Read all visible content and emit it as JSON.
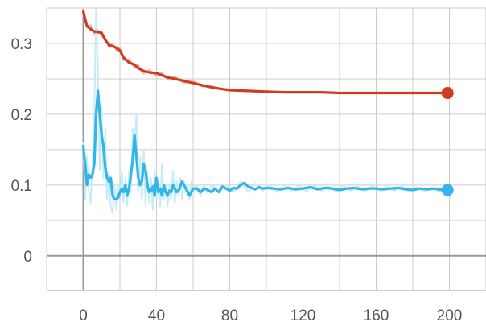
{
  "chart_data": {
    "type": "line",
    "x_ticks": [
      0,
      40,
      80,
      120,
      160,
      200
    ],
    "x_tick_labels": [
      "0",
      "40",
      "80",
      "120",
      "160",
      "200"
    ],
    "y_ticks": [
      0,
      0.1,
      0.2,
      0.3
    ],
    "y_tick_labels": [
      "0",
      "0.1",
      "0.2",
      "0.3"
    ],
    "xlim": [
      -20,
      220
    ],
    "ylim": [
      -0.048,
      0.35
    ],
    "x_grid_step": 20,
    "y_grid_step": 0.05,
    "grid": true,
    "colors": {
      "axis_zero": "#999999",
      "grid": "#cccccc",
      "series_1": "#cc3e1f",
      "series_1_raw": "#f0b8a8",
      "series_2": "#33b5e5",
      "series_2_raw": "#c5ebf8"
    },
    "series": [
      {
        "key": "series_1",
        "x": [
          0,
          2,
          4,
          6,
          8,
          10,
          12,
          14,
          16,
          18,
          20,
          22,
          25,
          28,
          30,
          33,
          36,
          40,
          43,
          46,
          50,
          55,
          60,
          65,
          70,
          75,
          80,
          90,
          100,
          110,
          120,
          130,
          140,
          150,
          160,
          170,
          180,
          190,
          199
        ],
        "y": [
          0.345,
          0.325,
          0.32,
          0.317,
          0.316,
          0.315,
          0.305,
          0.298,
          0.296,
          0.294,
          0.29,
          0.28,
          0.273,
          0.27,
          0.265,
          0.261,
          0.259,
          0.258,
          0.255,
          0.252,
          0.25,
          0.247,
          0.244,
          0.241,
          0.238,
          0.236,
          0.234,
          0.233,
          0.232,
          0.231,
          0.231,
          0.231,
          0.23,
          0.23,
          0.23,
          0.23,
          0.23,
          0.23,
          0.23
        ],
        "raw_x": [
          0,
          2,
          4,
          6,
          8,
          10,
          12,
          14,
          16,
          18,
          20,
          22,
          25,
          28,
          30,
          33,
          36,
          40,
          43,
          46,
          50,
          55,
          60,
          65,
          70,
          75,
          80
        ],
        "raw_y": [
          0.35,
          0.322,
          0.326,
          0.313,
          0.319,
          0.31,
          0.308,
          0.294,
          0.3,
          0.29,
          0.294,
          0.276,
          0.278,
          0.265,
          0.27,
          0.257,
          0.263,
          0.254,
          0.259,
          0.249,
          0.253,
          0.244,
          0.247,
          0.239,
          0.24,
          0.235,
          0.236
        ],
        "end_marker": true
      },
      {
        "key": "series_2",
        "x": [
          0,
          1,
          2,
          3,
          4,
          5,
          6,
          7,
          8,
          9,
          10,
          11,
          12,
          13,
          14,
          15,
          16,
          17,
          18,
          19,
          20,
          21,
          22,
          23,
          24,
          25,
          26,
          27,
          28,
          29,
          30,
          31,
          32,
          33,
          34,
          35,
          36,
          37,
          38,
          39,
          40,
          41,
          42,
          43,
          44,
          45,
          46,
          47,
          48,
          49,
          50,
          51,
          52,
          53,
          54,
          55,
          56,
          57,
          58,
          59,
          60,
          62,
          64,
          66,
          68,
          70,
          72,
          74,
          76,
          78,
          80,
          82,
          84,
          86,
          88,
          90,
          92,
          94,
          96,
          98,
          100,
          104,
          108,
          112,
          116,
          120,
          124,
          128,
          132,
          136,
          140,
          144,
          148,
          152,
          156,
          160,
          164,
          168,
          172,
          176,
          180,
          184,
          188,
          192,
          196,
          199
        ],
        "y": [
          0.155,
          0.13,
          0.1,
          0.115,
          0.11,
          0.115,
          0.13,
          0.2,
          0.233,
          0.2,
          0.17,
          0.155,
          0.125,
          0.11,
          0.105,
          0.11,
          0.085,
          0.08,
          0.08,
          0.082,
          0.09,
          0.095,
          0.09,
          0.1,
          0.085,
          0.095,
          0.115,
          0.135,
          0.17,
          0.14,
          0.11,
          0.1,
          0.105,
          0.13,
          0.12,
          0.1,
          0.09,
          0.092,
          0.098,
          0.085,
          0.11,
          0.09,
          0.095,
          0.085,
          0.1,
          0.09,
          0.085,
          0.092,
          0.09,
          0.1,
          0.095,
          0.09,
          0.092,
          0.098,
          0.105,
          0.1,
          0.095,
          0.09,
          0.085,
          0.09,
          0.095,
          0.095,
          0.09,
          0.095,
          0.093,
          0.09,
          0.095,
          0.09,
          0.098,
          0.095,
          0.092,
          0.096,
          0.095,
          0.1,
          0.103,
          0.098,
          0.096,
          0.094,
          0.097,
          0.095,
          0.096,
          0.095,
          0.094,
          0.096,
          0.094,
          0.095,
          0.097,
          0.094,
          0.096,
          0.095,
          0.093,
          0.095,
          0.096,
          0.094,
          0.095,
          0.095,
          0.094,
          0.095,
          0.096,
          0.094,
          0.093,
          0.095,
          0.094,
          0.095,
          0.093,
          0.093
        ],
        "raw_x": [
          0,
          1,
          2,
          3,
          4,
          5,
          6,
          7,
          8,
          9,
          10,
          11,
          12,
          13,
          14,
          15,
          16,
          17,
          18,
          19,
          20,
          21,
          22,
          23,
          24,
          25,
          26,
          27,
          28,
          29,
          30,
          31,
          32,
          33,
          34,
          35,
          36,
          37,
          38,
          39,
          40,
          41,
          42,
          43,
          44,
          45,
          46,
          47,
          48,
          49,
          50,
          51,
          52,
          53,
          54,
          55,
          56,
          57,
          58,
          59,
          60,
          62,
          64,
          66,
          68,
          70,
          74,
          78,
          82,
          86,
          90,
          94,
          98,
          102,
          106,
          110,
          114,
          118,
          122,
          126,
          130,
          134,
          138,
          142,
          146,
          150,
          154,
          158,
          162,
          166,
          170,
          174,
          178,
          182,
          186,
          190,
          194,
          198
        ],
        "raw_y": [
          0.16,
          0.08,
          0.14,
          0.09,
          0.075,
          0.13,
          0.2,
          0.35,
          0.26,
          0.12,
          0.21,
          0.11,
          0.18,
          0.08,
          0.12,
          0.07,
          0.06,
          0.1,
          0.065,
          0.1,
          0.08,
          0.12,
          0.075,
          0.11,
          0.07,
          0.12,
          0.09,
          0.18,
          0.14,
          0.2,
          0.09,
          0.14,
          0.08,
          0.15,
          0.07,
          0.12,
          0.075,
          0.11,
          0.065,
          0.12,
          0.08,
          0.1,
          0.07,
          0.13,
          0.08,
          0.1,
          0.07,
          0.1,
          0.08,
          0.12,
          0.075,
          0.105,
          0.085,
          0.11,
          0.08,
          0.105,
          0.09,
          0.1,
          0.08,
          0.105,
          0.09,
          0.1,
          0.085,
          0.1,
          0.088,
          0.1,
          0.09,
          0.1,
          0.09,
          0.105,
          0.09,
          0.102,
          0.092,
          0.1,
          0.09,
          0.1,
          0.092,
          0.099,
          0.091,
          0.1,
          0.092,
          0.098,
          0.091,
          0.099,
          0.092,
          0.098,
          0.091,
          0.099,
          0.091,
          0.098,
          0.092,
          0.099,
          0.092,
          0.097,
          0.091,
          0.097,
          0.091,
          0.096
        ],
        "end_marker": true
      }
    ]
  }
}
